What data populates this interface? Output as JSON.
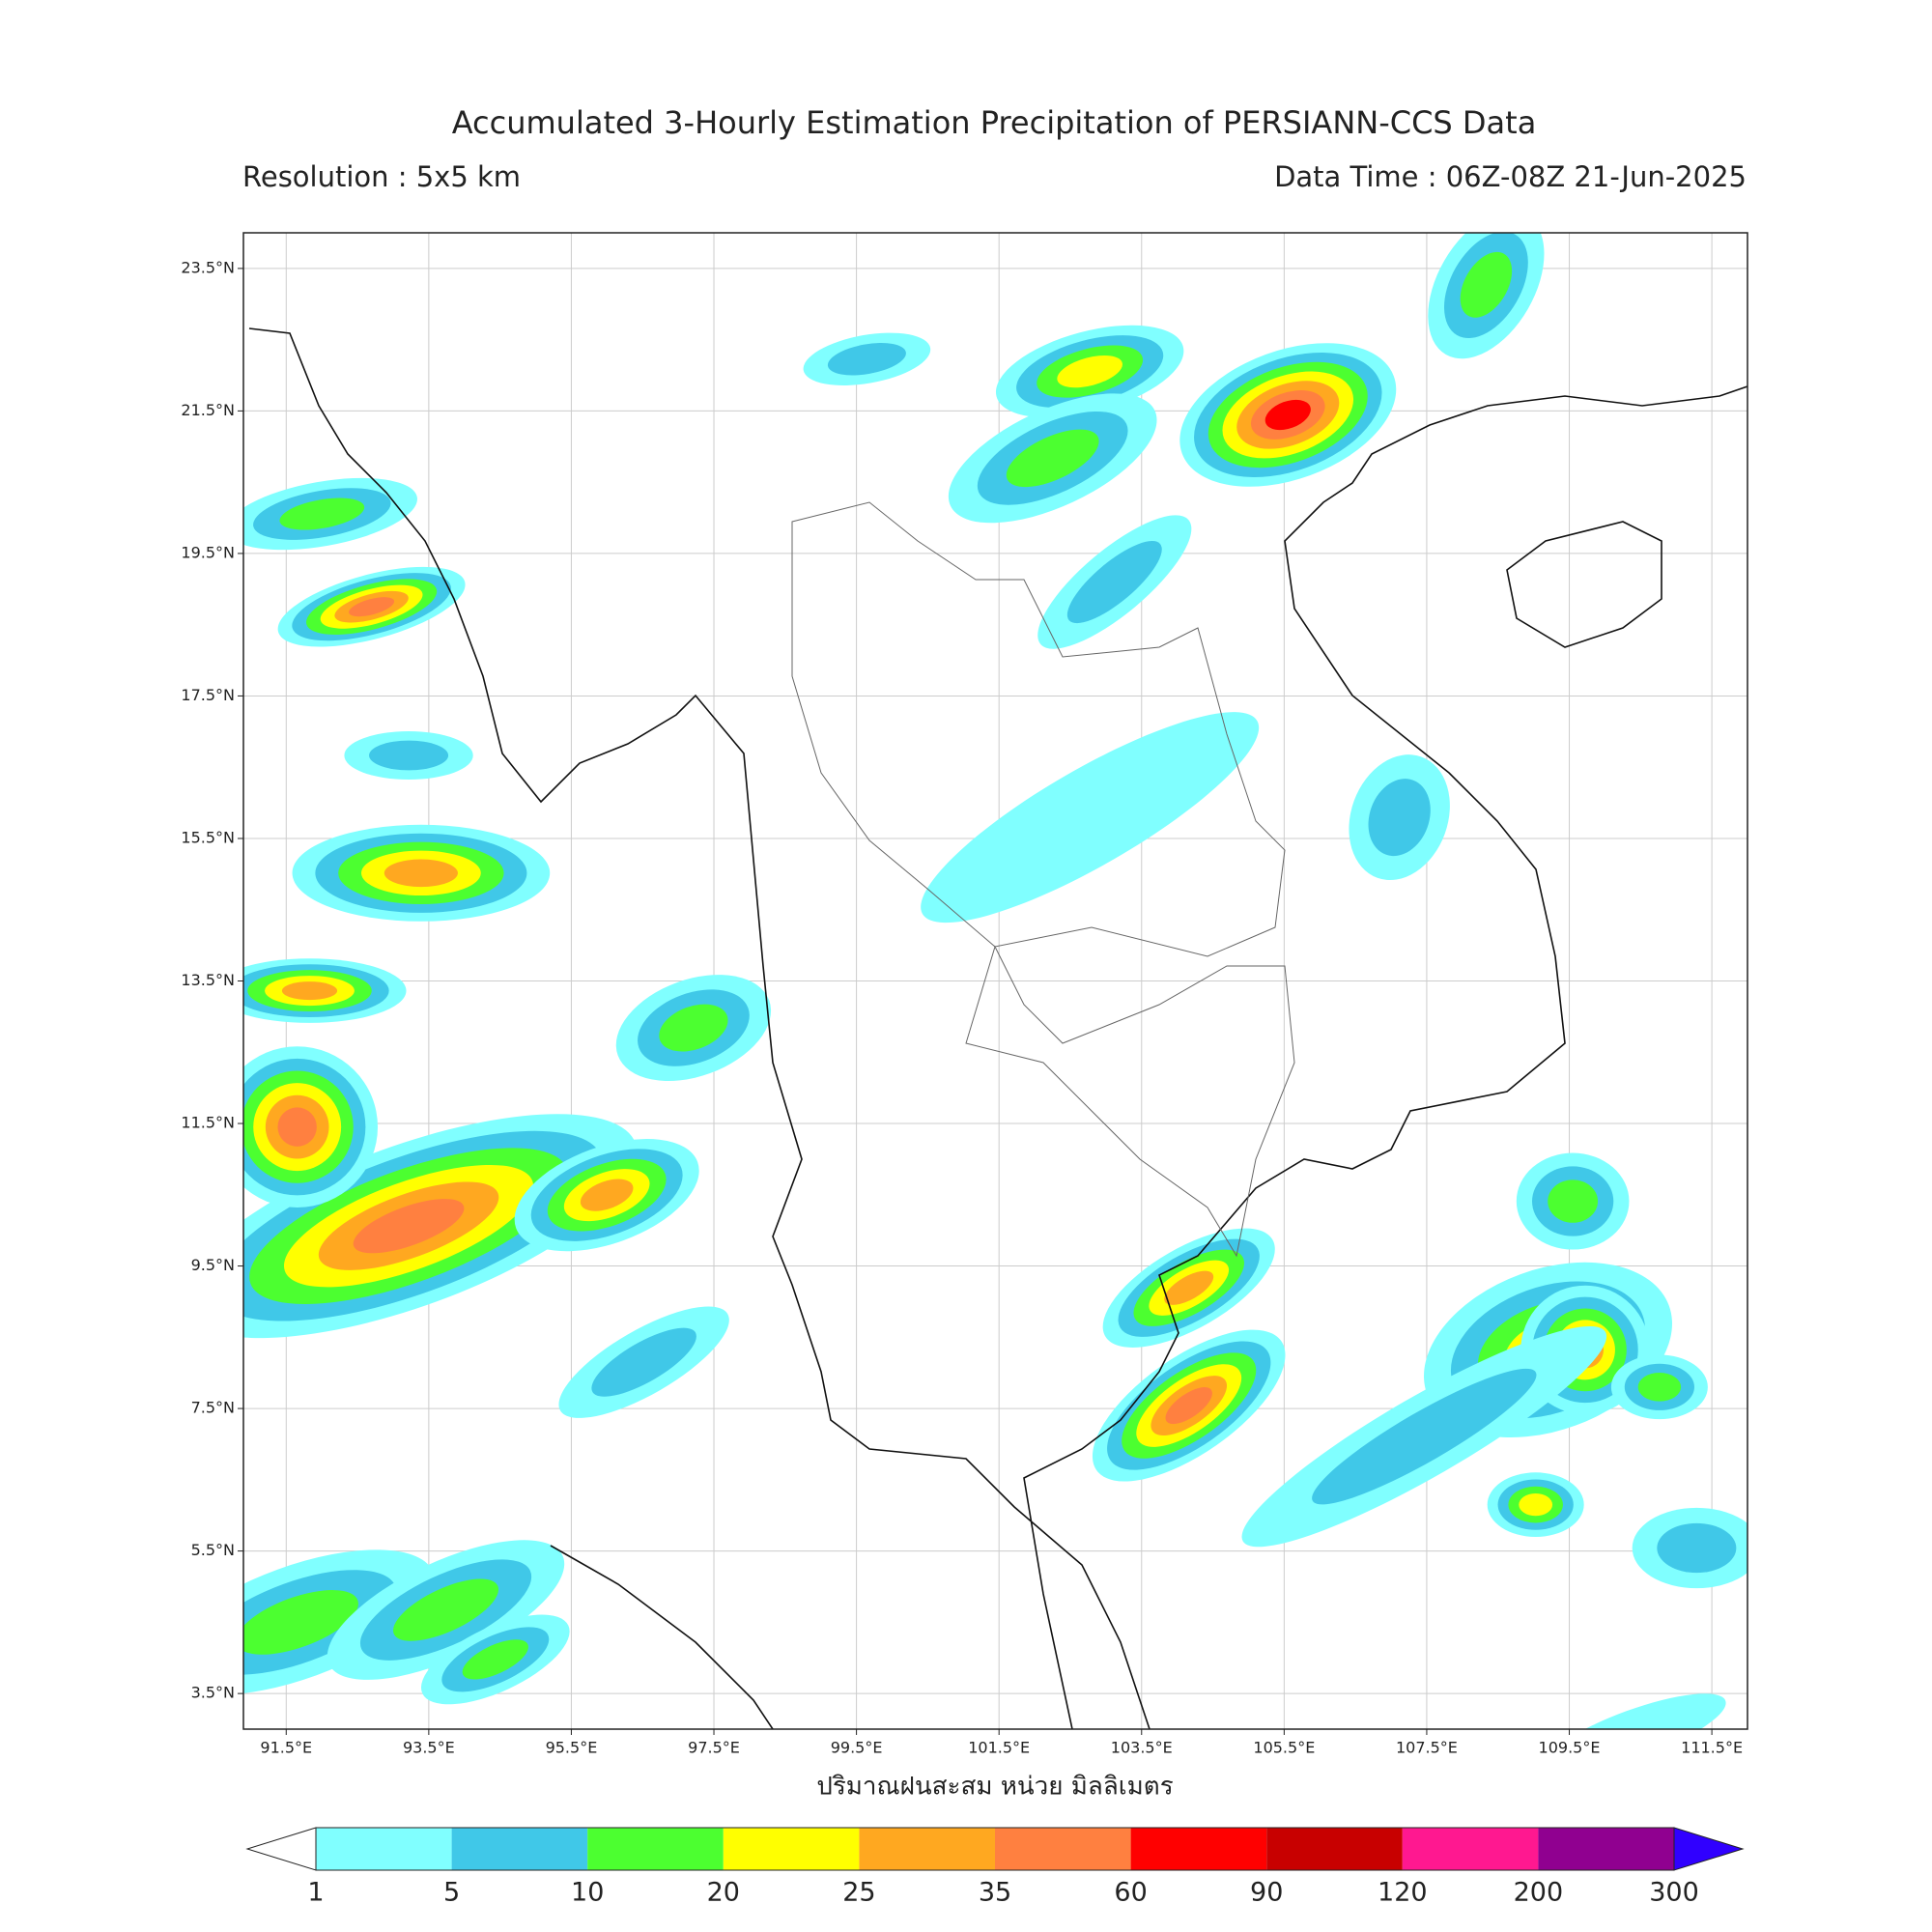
{
  "header": {
    "title": "Accumulated 3-Hourly Estimation Precipitation of PERSIANN-CCS Data",
    "resolution": "Resolution : 5x5 km",
    "data_time": "Data Time : 06Z-08Z 21-Jun-2025"
  },
  "map": {
    "lon_range": [
      90.9,
      112
    ],
    "lat_range": [
      3,
      24
    ],
    "lon_ticks": [
      {
        "value": 91.5,
        "label": "91.5°E"
      },
      {
        "value": 93.5,
        "label": "93.5°E"
      },
      {
        "value": 95.5,
        "label": "95.5°E"
      },
      {
        "value": 97.5,
        "label": "97.5°E"
      },
      {
        "value": 99.5,
        "label": "99.5°E"
      },
      {
        "value": 101.5,
        "label": "101.5°E"
      },
      {
        "value": 103.5,
        "label": "103.5°E"
      },
      {
        "value": 105.5,
        "label": "105.5°E"
      },
      {
        "value": 107.5,
        "label": "107.5°E"
      },
      {
        "value": 109.5,
        "label": "109.5°E"
      },
      {
        "value": 111.5,
        "label": "111.5°E"
      }
    ],
    "lat_ticks": [
      {
        "value": 23.5,
        "label": "23.5°N"
      },
      {
        "value": 21.5,
        "label": "21.5°N"
      },
      {
        "value": 19.5,
        "label": "19.5°N"
      },
      {
        "value": 17.5,
        "label": "17.5°N"
      },
      {
        "value": 15.5,
        "label": "15.5°N"
      },
      {
        "value": 13.5,
        "label": "13.5°N"
      },
      {
        "value": 11.5,
        "label": "11.5°N"
      },
      {
        "value": 9.5,
        "label": "9.5°N"
      },
      {
        "value": 7.5,
        "label": "7.5°N"
      },
      {
        "value": 5.5,
        "label": "5.5°N"
      },
      {
        "value": 3.5,
        "label": "3.5°N"
      }
    ],
    "grid": true,
    "unit_label": "ปริมาณฝนสะสม หน่วย มิลลิเมตร"
  },
  "colorbar": {
    "levels": [
      1,
      5,
      10,
      20,
      25,
      35,
      60,
      90,
      120,
      200,
      300
    ],
    "colors": [
      "#80ffff",
      "#40c8e8",
      "#4cff30",
      "#ffff00",
      "#ffa820",
      "#ff8040",
      "#ff0000",
      "#c80000",
      "#ff1890",
      "#900090"
    ],
    "under_color": "#ffffff",
    "over_color": "#3000ff"
  }
}
